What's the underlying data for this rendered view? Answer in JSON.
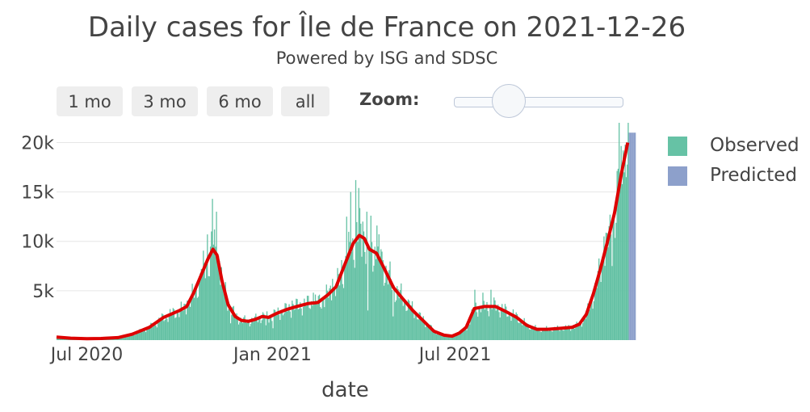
{
  "chart_data": {
    "type": "bar+line",
    "title": "Daily cases for Île de France on 2021-12-26",
    "subtitle": "Powered by ISG and SDSC",
    "xlabel": "date",
    "ylabel": "",
    "x_range": [
      "2020-06-01",
      "2021-12-26"
    ],
    "ylim": [
      0,
      22000
    ],
    "y_ticks": [
      5000,
      10000,
      15000,
      20000
    ],
    "y_tick_labels": [
      "5k",
      "10k",
      "15k",
      "20k"
    ],
    "x_ticks": [
      "2020-07-01",
      "2021-01-01",
      "2021-07-01"
    ],
    "x_tick_labels": [
      "Jul 2020",
      "Jan 2021",
      "Jul 2021"
    ],
    "legend": [
      {
        "name": "Observed",
        "color": "#66c2a5"
      },
      {
        "name": "Predicted",
        "color": "#8da0cb"
      }
    ],
    "trend_color": "#dd0000",
    "observed_end": "2021-12-19",
    "trend": [
      [
        "2020-06-01",
        300
      ],
      [
        "2020-06-15",
        200
      ],
      [
        "2020-07-01",
        150
      ],
      [
        "2020-07-15",
        160
      ],
      [
        "2020-08-01",
        250
      ],
      [
        "2020-08-15",
        600
      ],
      [
        "2020-09-01",
        1300
      ],
      [
        "2020-09-15",
        2300
      ],
      [
        "2020-10-01",
        3000
      ],
      [
        "2020-10-08",
        3400
      ],
      [
        "2020-10-15",
        4800
      ],
      [
        "2020-10-22",
        6500
      ],
      [
        "2020-10-29",
        8200
      ],
      [
        "2020-11-03",
        9200
      ],
      [
        "2020-11-07",
        8600
      ],
      [
        "2020-11-12",
        6000
      ],
      [
        "2020-11-18",
        3600
      ],
      [
        "2020-11-25",
        2400
      ],
      [
        "2020-12-01",
        2000
      ],
      [
        "2020-12-08",
        1900
      ],
      [
        "2020-12-15",
        2100
      ],
      [
        "2020-12-22",
        2400
      ],
      [
        "2020-12-28",
        2300
      ],
      [
        "2021-01-05",
        2700
      ],
      [
        "2021-01-15",
        3100
      ],
      [
        "2021-01-25",
        3400
      ],
      [
        "2021-02-05",
        3700
      ],
      [
        "2021-02-15",
        3800
      ],
      [
        "2021-02-25",
        4600
      ],
      [
        "2021-03-05",
        5400
      ],
      [
        "2021-03-15",
        8000
      ],
      [
        "2021-03-22",
        9800
      ],
      [
        "2021-03-28",
        10600
      ],
      [
        "2021-04-02",
        10300
      ],
      [
        "2021-04-07",
        9200
      ],
      [
        "2021-04-14",
        8800
      ],
      [
        "2021-04-22",
        7200
      ],
      [
        "2021-05-01",
        5300
      ],
      [
        "2021-05-10",
        4200
      ],
      [
        "2021-05-20",
        3000
      ],
      [
        "2021-06-01",
        1800
      ],
      [
        "2021-06-10",
        900
      ],
      [
        "2021-06-20",
        500
      ],
      [
        "2021-06-28",
        400
      ],
      [
        "2021-07-05",
        700
      ],
      [
        "2021-07-12",
        1300
      ],
      [
        "2021-07-20",
        3200
      ],
      [
        "2021-07-30",
        3400
      ],
      [
        "2021-08-10",
        3400
      ],
      [
        "2021-08-20",
        2900
      ],
      [
        "2021-08-31",
        2300
      ],
      [
        "2021-09-10",
        1500
      ],
      [
        "2021-09-20",
        1100
      ],
      [
        "2021-10-01",
        1100
      ],
      [
        "2021-10-15",
        1200
      ],
      [
        "2021-10-25",
        1300
      ],
      [
        "2021-11-01",
        1600
      ],
      [
        "2021-11-08",
        2600
      ],
      [
        "2021-11-15",
        4700
      ],
      [
        "2021-11-22",
        7200
      ],
      [
        "2021-11-29",
        10000
      ],
      [
        "2021-12-06",
        12900
      ],
      [
        "2021-12-13",
        17000
      ],
      [
        "2021-12-19",
        20000
      ]
    ],
    "peaks": [
      [
        "2020-10-08",
        4000
      ],
      [
        "2020-10-22",
        7200
      ],
      [
        "2020-10-28",
        10700
      ],
      [
        "2020-11-01",
        11000
      ],
      [
        "2020-11-02",
        14300
      ],
      [
        "2020-11-04",
        11200
      ],
      [
        "2020-11-06",
        13000
      ],
      [
        "2020-11-09",
        8000
      ],
      [
        "2020-11-12",
        6000
      ],
      [
        "2021-01-20",
        4000
      ],
      [
        "2021-02-10",
        4800
      ],
      [
        "2021-03-01",
        6200
      ],
      [
        "2021-03-10",
        8100
      ],
      [
        "2021-03-15",
        12500
      ],
      [
        "2021-03-19",
        15000
      ],
      [
        "2021-03-24",
        16200
      ],
      [
        "2021-03-27",
        15400
      ],
      [
        "2021-03-31",
        12000
      ],
      [
        "2021-04-04",
        13000
      ],
      [
        "2021-04-08",
        12600
      ],
      [
        "2021-04-14",
        11600
      ],
      [
        "2021-04-18",
        9200
      ],
      [
        "2021-07-20",
        5100
      ],
      [
        "2021-07-28",
        4800
      ],
      [
        "2021-08-05",
        5100
      ],
      [
        "2021-11-25",
        10500
      ],
      [
        "2021-12-01",
        12700
      ],
      [
        "2021-12-10",
        22000
      ],
      [
        "2021-12-14",
        19200
      ]
    ],
    "dips": [
      [
        "2020-11-20",
        1700
      ],
      [
        "2020-12-25",
        1500
      ],
      [
        "2021-01-01",
        1200
      ],
      [
        "2021-04-05",
        3000
      ],
      [
        "2021-04-30",
        2400
      ],
      [
        "2021-12-03",
        7500
      ]
    ]
  },
  "controls": {
    "range_buttons": [
      "1 mo",
      "3 mo",
      "6 mo",
      "all"
    ],
    "zoom_label": "Zoom:"
  }
}
